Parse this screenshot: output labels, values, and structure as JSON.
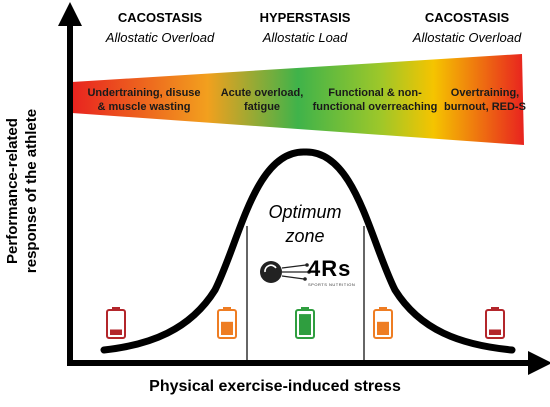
{
  "phases": [
    {
      "title": "CACOSTASIS",
      "subtitle": "Allostatic Overload"
    },
    {
      "title": "HYPERSTASIS",
      "subtitle": "Allostatic Load"
    },
    {
      "title": "CACOSTASIS",
      "subtitle": "Allostatic Overload"
    }
  ],
  "band_labels": [
    "Undertraining, disuse\n& muscle wasting",
    "Acute overload,\nfatigue",
    "Functional & non-\nfunctional overreaching",
    "Overtraining,\nburnout, RED-S"
  ],
  "band_colors": [
    "#e8231f",
    "#f5a623",
    "#43b54a",
    "#f5c400",
    "#e8231f"
  ],
  "zone_label": "Optimum\nzone",
  "logo": {
    "text": "4Rs",
    "subtext": "SPORTS NUTRITION"
  },
  "axis": {
    "x_title": "Physical exercise-induced stress",
    "y_title": "Performance-related\nresponse of the athlete"
  },
  "batteries": [
    {
      "name": "low-red",
      "color": "#b3262b",
      "fill": 0.25
    },
    {
      "name": "mid-orange",
      "color": "#ee7d23",
      "fill": 0.6
    },
    {
      "name": "full-green",
      "color": "#2f9e3f",
      "fill": 0.95
    },
    {
      "name": "mid-orange",
      "color": "#ee7d23",
      "fill": 0.6
    },
    {
      "name": "low-red",
      "color": "#b3262b",
      "fill": 0.25
    }
  ]
}
